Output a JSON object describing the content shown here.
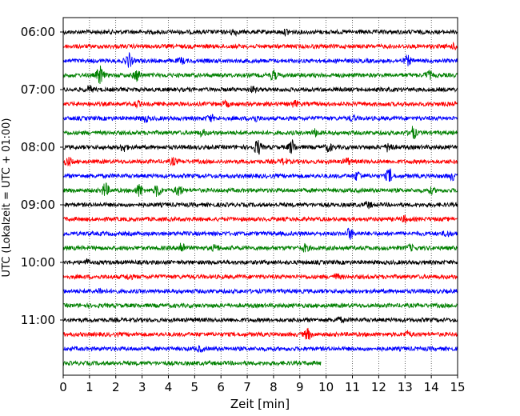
{
  "chart_data": {
    "type": "line",
    "title": "",
    "xlabel": "Zeit  [min]",
    "ylabel": "UTC (Lokalzeit = UTC + 01:00)",
    "xlim": [
      0,
      15
    ],
    "xticks": [
      "0",
      "1",
      "2",
      "3",
      "4",
      "5",
      "6",
      "7",
      "8",
      "9",
      "10",
      "11",
      "12",
      "13",
      "14",
      "15"
    ],
    "yticks": [
      "06:00",
      "07:00",
      "08:00",
      "09:00",
      "10:00",
      "11:00"
    ],
    "grid": "vertical dotted at each minute",
    "trace_interval_min": 15,
    "trace_colors": [
      "#000000",
      "#ff0000",
      "#0000ff",
      "#008000"
    ],
    "traces": [
      {
        "start": "06:00",
        "end_min": 15,
        "events": [
          {
            "t": 6.5,
            "amp": 0.35
          },
          {
            "t": 8.5,
            "amp": 0.3
          }
        ]
      },
      {
        "start": "06:15",
        "end_min": 15,
        "events": [
          {
            "t": 14.9,
            "amp": 0.3
          }
        ]
      },
      {
        "start": "06:30",
        "end_min": 15,
        "events": [
          {
            "t": 2.5,
            "amp": 0.9
          },
          {
            "t": 4.5,
            "amp": 0.3
          },
          {
            "t": 13.1,
            "amp": 0.55
          }
        ]
      },
      {
        "start": "06:45",
        "end_min": 15,
        "events": [
          {
            "t": 1.4,
            "amp": 1.2
          },
          {
            "t": 2.8,
            "amp": 0.7
          },
          {
            "t": 8.0,
            "amp": 0.6
          },
          {
            "t": 13.9,
            "amp": 0.5
          }
        ]
      },
      {
        "start": "07:00",
        "end_min": 15,
        "events": [
          {
            "t": 1.0,
            "amp": 0.4
          },
          {
            "t": 7.2,
            "amp": 0.3
          }
        ]
      },
      {
        "start": "07:15",
        "end_min": 15,
        "events": [
          {
            "t": 2.8,
            "amp": 0.3
          },
          {
            "t": 6.2,
            "amp": 0.3
          },
          {
            "t": 8.8,
            "amp": 0.35
          }
        ]
      },
      {
        "start": "07:30",
        "end_min": 15,
        "events": [
          {
            "t": 3.1,
            "amp": 0.4
          },
          {
            "t": 5.6,
            "amp": 0.4
          },
          {
            "t": 7.3,
            "amp": 0.35
          },
          {
            "t": 11.0,
            "amp": 0.3
          }
        ]
      },
      {
        "start": "07:45",
        "end_min": 15,
        "events": [
          {
            "t": 5.3,
            "amp": 0.35
          },
          {
            "t": 9.6,
            "amp": 0.4
          },
          {
            "t": 13.3,
            "amp": 0.8
          }
        ]
      },
      {
        "start": "08:00",
        "end_min": 15,
        "events": [
          {
            "t": 2.3,
            "amp": 0.5
          },
          {
            "t": 7.4,
            "amp": 1.0
          },
          {
            "t": 8.7,
            "amp": 0.9
          },
          {
            "t": 10.1,
            "amp": 0.5
          },
          {
            "t": 12.4,
            "amp": 0.7
          }
        ]
      },
      {
        "start": "08:15",
        "end_min": 15,
        "events": [
          {
            "t": 0.2,
            "amp": 0.5
          },
          {
            "t": 4.2,
            "amp": 0.4
          },
          {
            "t": 8.4,
            "amp": 0.35
          },
          {
            "t": 10.8,
            "amp": 0.4
          }
        ]
      },
      {
        "start": "08:30",
        "end_min": 15,
        "events": [
          {
            "t": 11.2,
            "amp": 0.6
          },
          {
            "t": 12.4,
            "amp": 0.9
          },
          {
            "t": 14.8,
            "amp": 0.4
          }
        ]
      },
      {
        "start": "08:45",
        "end_min": 15,
        "events": [
          {
            "t": 1.6,
            "amp": 0.9
          },
          {
            "t": 2.9,
            "amp": 0.8
          },
          {
            "t": 3.6,
            "amp": 0.8
          },
          {
            "t": 4.4,
            "amp": 0.7
          },
          {
            "t": 14.0,
            "amp": 0.3
          }
        ]
      },
      {
        "start": "09:00",
        "end_min": 15,
        "events": [
          {
            "t": 11.6,
            "amp": 0.35
          }
        ]
      },
      {
        "start": "09:15",
        "end_min": 15,
        "events": [
          {
            "t": 13.0,
            "amp": 0.35
          }
        ]
      },
      {
        "start": "09:30",
        "end_min": 15,
        "events": [
          {
            "t": 10.9,
            "amp": 0.7
          },
          {
            "t": 14.6,
            "amp": 0.3
          }
        ]
      },
      {
        "start": "09:45",
        "end_min": 15,
        "events": [
          {
            "t": 4.5,
            "amp": 0.8
          },
          {
            "t": 5.8,
            "amp": 0.4
          },
          {
            "t": 9.2,
            "amp": 0.45
          },
          {
            "t": 13.2,
            "amp": 0.35
          }
        ]
      },
      {
        "start": "10:00",
        "end_min": 15,
        "events": [
          {
            "t": 0.9,
            "amp": 0.3
          }
        ]
      },
      {
        "start": "10:15",
        "end_min": 15,
        "events": [
          {
            "t": 2.5,
            "amp": 0.3
          },
          {
            "t": 10.4,
            "amp": 0.3
          }
        ]
      },
      {
        "start": "10:30",
        "end_min": 15,
        "events": [
          {
            "t": 1.4,
            "amp": 0.3
          }
        ]
      },
      {
        "start": "10:45",
        "end_min": 15,
        "events": []
      },
      {
        "start": "11:00",
        "end_min": 15,
        "events": [
          {
            "t": 10.5,
            "amp": 0.3
          }
        ]
      },
      {
        "start": "11:15",
        "end_min": 15,
        "events": [
          {
            "t": 9.3,
            "amp": 0.7
          },
          {
            "t": 13.1,
            "amp": 0.35
          }
        ]
      },
      {
        "start": "11:30",
        "end_min": 15,
        "events": [
          {
            "t": 5.2,
            "amp": 0.3
          }
        ]
      },
      {
        "start": "11:45",
        "end_min": 9.8,
        "events": []
      }
    ]
  }
}
